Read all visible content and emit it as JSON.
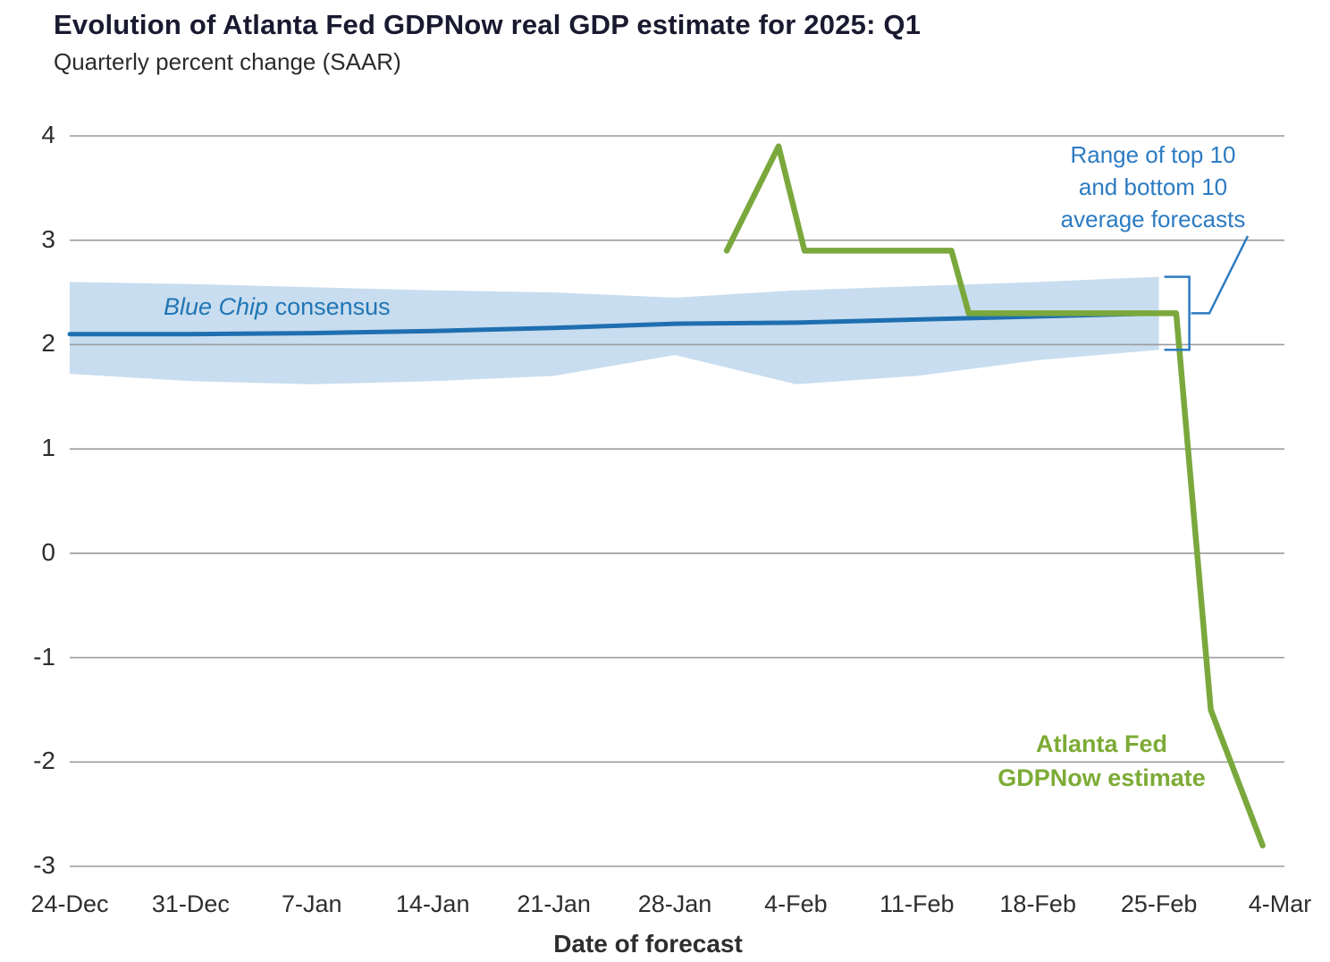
{
  "title": "Evolution of Atlanta Fed GDPNow real GDP estimate for 2025: Q1",
  "subtitle": "Quarterly percent change (SAAR)",
  "annotations": {
    "range_label": "Range of top 10\nand bottom 10\naverage forecasts",
    "blue_chip_italic": "Blue Chip",
    "blue_chip_rest": " consensus",
    "gdpnow_label": "Atlanta Fed\nGDPNow estimate"
  },
  "colors": {
    "band": "#c8ddef",
    "blue_line": "#1f6fb0",
    "blue_text": "#2c7bc2",
    "green_line": "#7aa83d",
    "green_text": "#7dab36",
    "grid": "#9b9b9b",
    "title_text": "#191930",
    "axis_text": "#2e2e2e"
  },
  "chart_data": {
    "type": "line",
    "title": "Evolution of Atlanta Fed GDPNow real GDP estimate for 2025: Q1",
    "subtitle": "Quarterly percent change (SAAR)",
    "xlabel": "Date of forecast",
    "ylabel": "Quarterly percent change (SAAR)",
    "ylim": [
      -3,
      4
    ],
    "y_ticks": [
      -3,
      -2,
      -1,
      0,
      1,
      2,
      3,
      4
    ],
    "xlim_days": [
      0,
      70
    ],
    "x_ticks": [
      {
        "day": 0,
        "label": "24-Dec"
      },
      {
        "day": 7,
        "label": "31-Dec"
      },
      {
        "day": 14,
        "label": "7-Jan"
      },
      {
        "day": 21,
        "label": "14-Jan"
      },
      {
        "day": 28,
        "label": "21-Jan"
      },
      {
        "day": 35,
        "label": "28-Jan"
      },
      {
        "day": 42,
        "label": "4-Feb"
      },
      {
        "day": 49,
        "label": "11-Feb"
      },
      {
        "day": 56,
        "label": "18-Feb"
      },
      {
        "day": 63,
        "label": "25-Feb"
      },
      {
        "day": 70,
        "label": "4-Mar"
      }
    ],
    "band": {
      "name": "Range of top 10 and bottom 10 average forecasts",
      "x_days": [
        0,
        7,
        14,
        21,
        28,
        35,
        42,
        49,
        56,
        63
      ],
      "top": [
        2.6,
        2.58,
        2.55,
        2.52,
        2.5,
        2.45,
        2.52,
        2.56,
        2.6,
        2.65
      ],
      "bottom": [
        1.72,
        1.65,
        1.62,
        1.65,
        1.7,
        1.9,
        1.62,
        1.7,
        1.85,
        1.95
      ]
    },
    "series": [
      {
        "name": "Blue Chip consensus",
        "color_key": "blue_line",
        "width": 5,
        "x_days": [
          0,
          7,
          14,
          21,
          28,
          35,
          42,
          49,
          56,
          63
        ],
        "values": [
          2.1,
          2.1,
          2.11,
          2.13,
          2.16,
          2.2,
          2.21,
          2.24,
          2.27,
          2.3
        ]
      },
      {
        "name": "Atlanta Fed GDPNow estimate",
        "color_key": "green_line",
        "width": 6.5,
        "x_days": [
          38,
          41,
          42.5,
          51,
          52,
          64,
          66,
          69
        ],
        "values": [
          2.9,
          3.9,
          2.9,
          2.9,
          2.3,
          2.3,
          -1.5,
          -2.8
        ]
      }
    ],
    "bracket": {
      "x_day": 63,
      "top_value": 2.65,
      "bottom_value": 1.95
    }
  }
}
